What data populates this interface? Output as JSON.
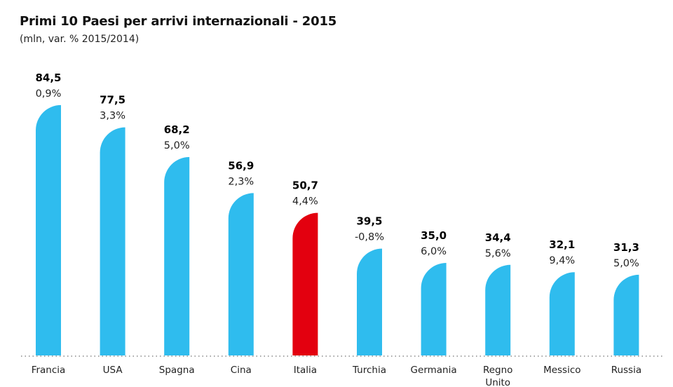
{
  "chart_data": {
    "type": "bar",
    "title": "Primi 10 Paesi per arrivi internazionali - 2015",
    "subtitle": "(mln, var. % 2015/2014)",
    "categories": [
      "Francia",
      "USA",
      "Spagna",
      "Cina",
      "Italia",
      "Turchia",
      "Germania",
      "Regno Unito",
      "Messico",
      "Russia"
    ],
    "values": [
      84.5,
      77.5,
      68.2,
      56.9,
      50.7,
      39.5,
      35.0,
      34.4,
      32.1,
      31.3
    ],
    "value_labels": [
      "84,5",
      "77,5",
      "68,2",
      "56,9",
      "50,7",
      "39,5",
      "35,0",
      "34,4",
      "32,1",
      "31,3"
    ],
    "change_labels": [
      "0,9%",
      "3,3%",
      "5,0%",
      "2,3%",
      "4,4%",
      "-0,8%",
      "6,0%",
      "5,6%",
      "9,4%",
      "5,0%"
    ],
    "highlight": "Italia",
    "colors": {
      "default": "#2fbcee",
      "highlight": "#e3000f"
    },
    "grid": false
  }
}
